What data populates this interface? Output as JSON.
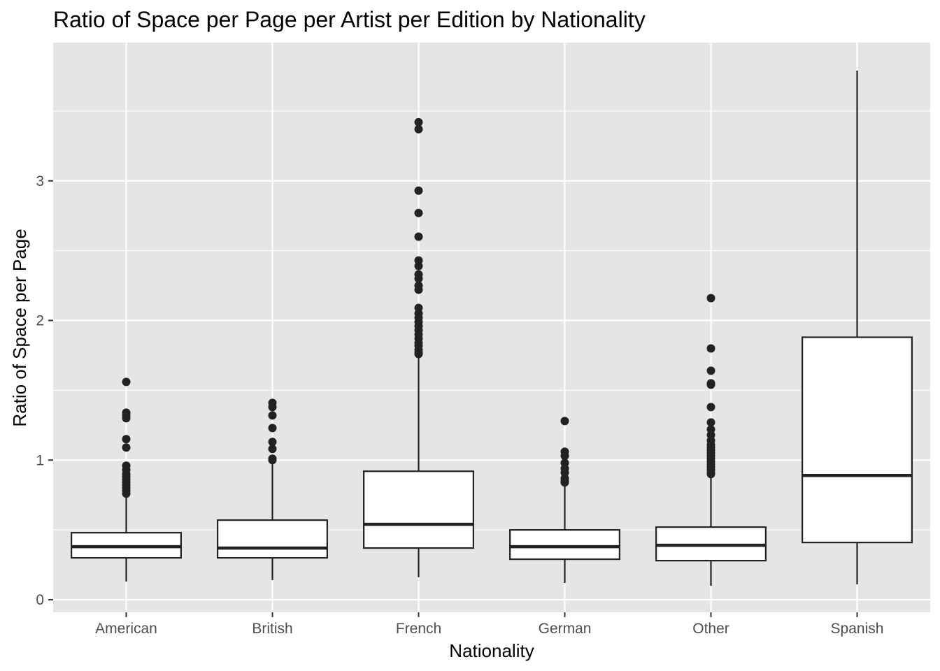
{
  "chart_data": {
    "type": "boxplot",
    "title": "Ratio of Space per Page per Artist per Edition by Nationality",
    "xlabel": "Nationality",
    "ylabel": "Ratio of Space per Page",
    "ylim": [
      -0.09,
      3.99
    ],
    "yticks": [
      0,
      1,
      2,
      3
    ],
    "grid": true,
    "colors": {
      "panel": "#e5e5e5",
      "grid": "#ffffff",
      "box_fill": "#ffffff",
      "stroke": "#222222",
      "tick_text": "#4d4d4d"
    },
    "categories": [
      "American",
      "British",
      "French",
      "German",
      "Other",
      "Spanish"
    ],
    "boxes": [
      {
        "category": "American",
        "whisker_low": 0.13,
        "q1": 0.3,
        "median": 0.38,
        "q3": 0.48,
        "whisker_high": 0.74,
        "outliers": [
          1.56,
          1.34,
          1.32,
          1.3,
          1.15,
          1.09,
          0.96,
          0.93,
          0.9,
          0.88,
          0.86,
          0.84,
          0.82,
          0.8,
          0.78,
          0.76
        ]
      },
      {
        "category": "British",
        "whisker_low": 0.14,
        "q1": 0.3,
        "median": 0.37,
        "q3": 0.57,
        "whisker_high": 1.0,
        "outliers": [
          1.41,
          1.38,
          1.32,
          1.23,
          1.13,
          1.08,
          1.01,
          1.0
        ]
      },
      {
        "category": "French",
        "whisker_low": 0.16,
        "q1": 0.37,
        "median": 0.54,
        "q3": 0.92,
        "whisker_high": 1.75,
        "outliers": [
          3.42,
          3.37,
          2.93,
          2.77,
          2.6,
          2.43,
          2.39,
          2.33,
          2.3,
          2.25,
          2.22,
          2.09,
          2.05,
          2.02,
          1.99,
          1.96,
          1.93,
          1.9,
          1.87,
          1.84,
          1.82,
          1.79,
          1.77,
          1.76
        ]
      },
      {
        "category": "German",
        "whisker_low": 0.12,
        "q1": 0.29,
        "median": 0.38,
        "q3": 0.5,
        "whisker_high": 0.82,
        "outliers": [
          1.28,
          1.06,
          1.03,
          0.98,
          0.94,
          0.91,
          0.87,
          0.85,
          0.84
        ]
      },
      {
        "category": "Other",
        "whisker_low": 0.1,
        "q1": 0.28,
        "median": 0.39,
        "q3": 0.52,
        "whisker_high": 0.89,
        "outliers": [
          2.16,
          1.8,
          1.64,
          1.55,
          1.54,
          1.38,
          1.27,
          1.22,
          1.18,
          1.14,
          1.11,
          1.09,
          1.07,
          1.05,
          1.03,
          1.01,
          0.99,
          0.97,
          0.95,
          0.93,
          0.91,
          0.9
        ]
      },
      {
        "category": "Spanish",
        "whisker_low": 0.11,
        "q1": 0.41,
        "median": 0.89,
        "q3": 1.88,
        "whisker_high": 3.79,
        "outliers": []
      }
    ]
  }
}
